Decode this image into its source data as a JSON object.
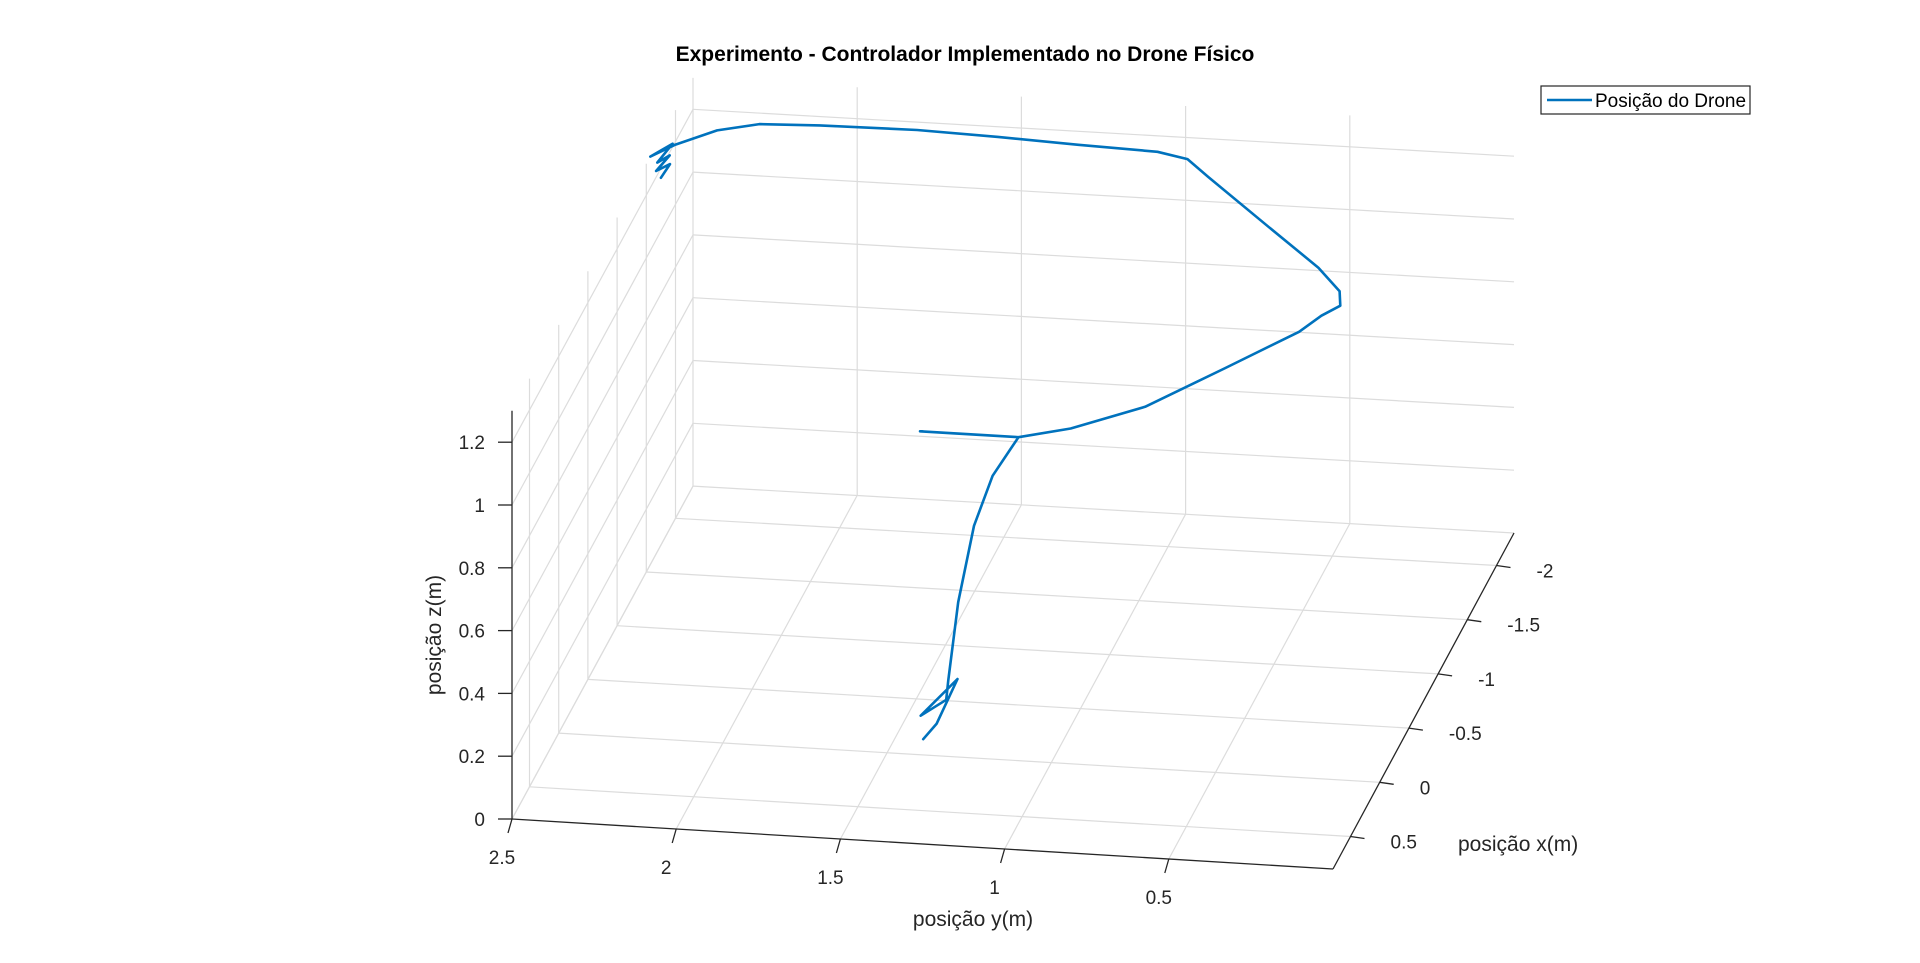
{
  "chart_data": {
    "type": "line3d",
    "title": "Experimento - Controlador Implementado no Drone Físico",
    "xlabel": "posição x(m)",
    "ylabel": "posição y(m)",
    "zlabel": "posição z(m)",
    "x_ticks": [
      "0.5",
      "0",
      "-0.5",
      "-1",
      "-1.5",
      "-2"
    ],
    "y_ticks": [
      "2.5",
      "2",
      "1.5",
      "1",
      "0.5"
    ],
    "z_ticks": [
      "1.2",
      "1",
      "0.8",
      "0.6",
      "0.4",
      "0.2",
      "0"
    ],
    "xlim": [
      -2.3,
      0.8
    ],
    "ylim": [
      0,
      2.5
    ],
    "zlim": [
      0,
      1.3
    ],
    "grid": true,
    "legend_position": "top-right",
    "series": [
      {
        "name": "Posição do Drone",
        "color": "#0072BD",
        "path": [
          [
            0.0,
            1.39,
            0.05
          ],
          [
            0.05,
            1.34,
            0.12
          ],
          [
            -0.08,
            1.3,
            0.22
          ],
          [
            0.1,
            1.38,
            0.16
          ],
          [
            0.0,
            1.32,
            0.18
          ],
          [
            0.02,
            1.31,
            0.25
          ],
          [
            0.02,
            1.28,
            0.5
          ],
          [
            0.03,
            1.23,
            0.75
          ],
          [
            0.05,
            1.17,
            0.92
          ],
          [
            0.03,
            1.12,
            1.0
          ],
          [
            0.0,
            1.1,
            1.03
          ],
          [
            0.0,
            1.15,
            1.03
          ],
          [
            0.0,
            1.3,
            1.03
          ],
          [
            0.0,
            1.4,
            1.03
          ],
          [
            0.0,
            1.2,
            1.03
          ],
          [
            0.0,
            1.1,
            1.03
          ],
          [
            -0.05,
            0.95,
            1.05
          ],
          [
            -0.2,
            0.75,
            1.08
          ],
          [
            -0.45,
            0.55,
            1.13
          ],
          [
            -0.7,
            0.37,
            1.17
          ],
          [
            -0.8,
            0.32,
            1.19
          ],
          [
            -0.9,
            0.28,
            1.19
          ],
          [
            -1.0,
            0.3,
            1.2
          ],
          [
            -1.2,
            0.4,
            1.2
          ],
          [
            -1.5,
            0.6,
            1.21
          ],
          [
            -1.9,
            0.86,
            1.22
          ],
          [
            -2.05,
            0.95,
            1.22
          ],
          [
            -2.1,
            1.05,
            1.22
          ],
          [
            -2.15,
            1.3,
            1.21
          ],
          [
            -2.18,
            1.55,
            1.21
          ],
          [
            -2.2,
            1.8,
            1.21
          ],
          [
            -2.22,
            2.1,
            1.2
          ],
          [
            -2.2,
            2.28,
            1.2
          ],
          [
            -2.15,
            2.4,
            1.19
          ],
          [
            -2.0,
            2.5,
            1.19
          ],
          [
            -1.85,
            2.55,
            1.2
          ],
          [
            -1.85,
            2.52,
            1.22
          ],
          [
            -1.95,
            2.5,
            1.21
          ],
          [
            -1.8,
            2.52,
            1.2
          ],
          [
            -1.9,
            2.5,
            1.19
          ],
          [
            -1.78,
            2.52,
            1.18
          ],
          [
            -1.85,
            2.49,
            1.18
          ],
          [
            -1.75,
            2.5,
            1.17
          ]
        ]
      }
    ]
  }
}
